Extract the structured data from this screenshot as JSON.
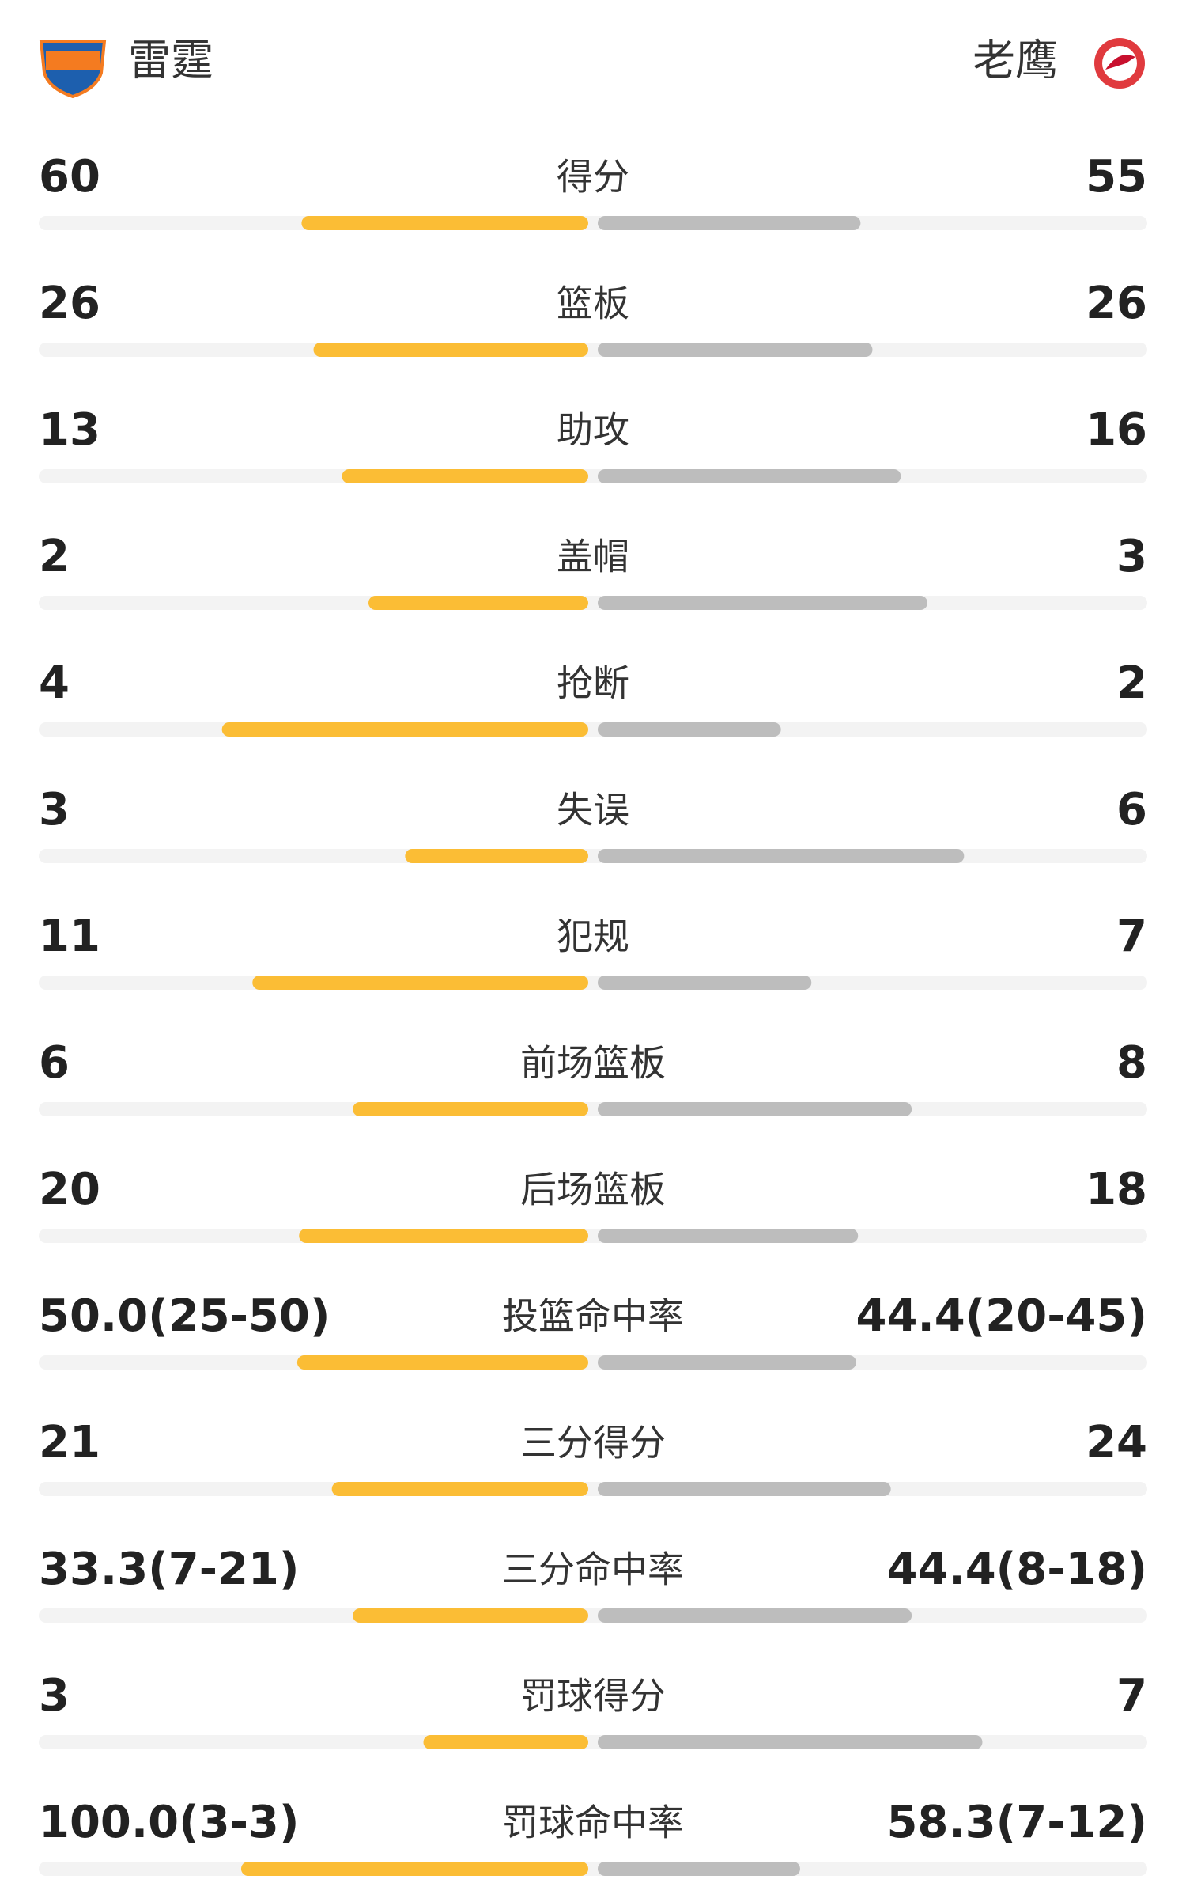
{
  "header": {
    "home": "雷霆",
    "away": "老鹰"
  },
  "stats": [
    {
      "label": "得分",
      "home": 60,
      "away": 55
    },
    {
      "label": "篮板",
      "home": 26,
      "away": 26
    },
    {
      "label": "助攻",
      "home": 13,
      "away": 16
    },
    {
      "label": "盖帽",
      "home": 2,
      "away": 3
    },
    {
      "label": "抢断",
      "home": 4,
      "away": 2
    },
    {
      "label": "失误",
      "home": 3,
      "away": 6
    },
    {
      "label": "犯规",
      "home": 11,
      "away": 7
    },
    {
      "label": "前场篮板",
      "home": 6,
      "away": 8
    },
    {
      "label": "后场篮板",
      "home": 20,
      "away": 18
    },
    {
      "label": "投篮命中率",
      "home": {
        "value": 50.0,
        "label": "50.0(25-50)"
      },
      "away": {
        "value": 44.4,
        "label": "44.4(20-45)"
      }
    },
    {
      "label": "三分得分",
      "home": 21,
      "away": 24
    },
    {
      "label": "三分命中率",
      "home": {
        "value": 33.3,
        "label": "33.3(7-21)"
      },
      "away": {
        "value": 44.4,
        "label": "44.4(8-18)"
      }
    },
    {
      "label": "罚球得分",
      "home": 3,
      "away": 7
    },
    {
      "label": "罚球命中率",
      "home": {
        "value": 100.0,
        "label": "100.0(3-3)"
      },
      "away": {
        "value": 58.3,
        "label": "58.3(7-12)"
      }
    }
  ]
}
